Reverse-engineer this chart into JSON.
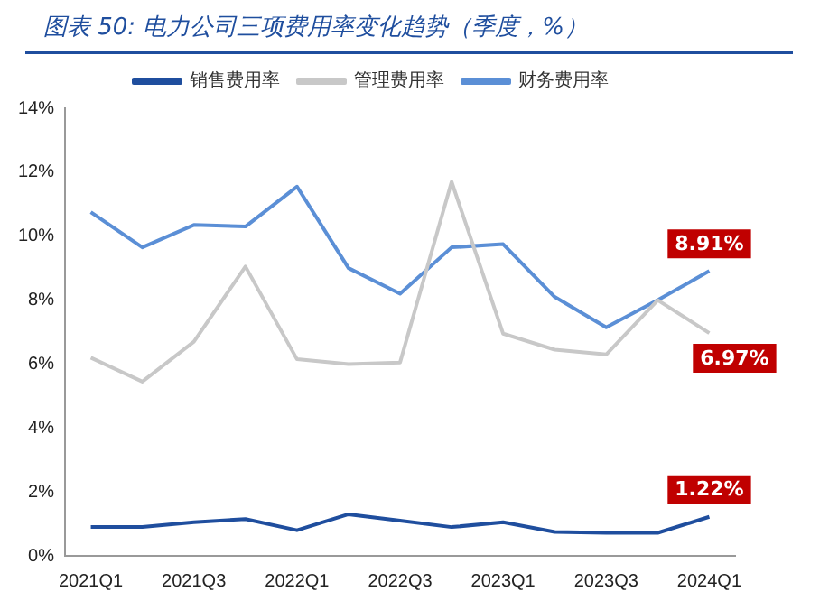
{
  "chart_data": {
    "type": "line",
    "title": "图表 50: 电力公司三项费用率变化趋势（季度，%）",
    "categories": [
      "2021Q1",
      null,
      "2021Q3",
      null,
      "2022Q1",
      null,
      "2022Q3",
      null,
      "2023Q1",
      null,
      "2023Q3",
      null,
      "2024Q1"
    ],
    "series": [
      {
        "name": "销售费用率",
        "color": "#1f4e9e",
        "values": [
          0.9,
          0.9,
          1.05,
          1.15,
          0.8,
          1.3,
          1.1,
          0.9,
          1.05,
          0.75,
          0.72,
          0.72,
          1.22
        ],
        "value_labels": [
          null,
          null,
          null,
          null,
          null,
          null,
          null,
          null,
          null,
          null,
          null,
          null,
          "1.22%"
        ]
      },
      {
        "name": "管理费用率",
        "color": "#c8c8c8",
        "values": [
          6.2,
          5.45,
          6.7,
          9.05,
          6.15,
          6.0,
          6.05,
          11.7,
          6.95,
          6.45,
          6.3,
          8.0,
          6.97
        ],
        "value_labels": [
          null,
          null,
          null,
          null,
          null,
          null,
          null,
          null,
          null,
          null,
          null,
          null,
          "6.97%"
        ]
      },
      {
        "name": "财务费用率",
        "color": "#5b8fd6",
        "values": [
          10.75,
          9.65,
          10.35,
          10.3,
          11.55,
          9.0,
          8.2,
          9.65,
          9.75,
          8.1,
          7.15,
          8.0,
          8.91
        ],
        "value_labels": [
          null,
          null,
          null,
          null,
          null,
          null,
          null,
          null,
          null,
          null,
          null,
          null,
          "8.91%"
        ]
      }
    ],
    "ylim": [
      0,
      14
    ],
    "yticks": [
      {
        "value": 0,
        "label": "0%"
      },
      {
        "value": 2,
        "label": "2%"
      },
      {
        "value": 4,
        "label": "4%"
      },
      {
        "value": 6,
        "label": "6%"
      },
      {
        "value": 8,
        "label": "8%"
      },
      {
        "value": 10,
        "label": "10%"
      },
      {
        "value": 12,
        "label": "12%"
      },
      {
        "value": 14,
        "label": "14%"
      }
    ],
    "grid": false,
    "legend": "top",
    "marker": "none",
    "line_style": "solid"
  }
}
